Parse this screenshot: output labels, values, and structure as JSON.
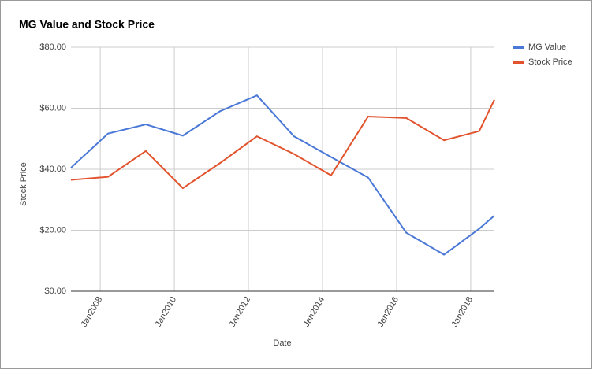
{
  "chart_data": {
    "type": "line",
    "title": "MG Value and Stock Price",
    "x_label": "Date",
    "y_label": "Stock Price",
    "x": [
      2007.21,
      2008.21,
      2009.23,
      2010.23,
      2011.23,
      2012.23,
      2013.23,
      2014.23,
      2015.23,
      2016.26,
      2017.28,
      2018.23,
      2018.64
    ],
    "series": [
      {
        "name": "MG Value",
        "color": "#4a78d6",
        "values": [
          40.5,
          51.7,
          54.7,
          51,
          59,
          64.2,
          50.8,
          44,
          37.3,
          19.2,
          12,
          20.5,
          24.8
        ]
      },
      {
        "name": "Stock Price",
        "color": "#e2532d",
        "values": [
          36.5,
          37.5,
          46,
          33.8,
          42,
          50.8,
          45,
          38,
          57.3,
          56.8,
          49.5,
          52.5,
          62.8
        ]
      }
    ],
    "xlim": [
      2007.21,
      2018.64
    ],
    "xticks": [
      {
        "value": 2008,
        "label": "Jan2008"
      },
      {
        "value": 2010,
        "label": "Jan2010"
      },
      {
        "value": 2012,
        "label": "Jan2012"
      },
      {
        "value": 2014,
        "label": "Jan2014"
      },
      {
        "value": 2016,
        "label": "Jan2016"
      },
      {
        "value": 2018,
        "label": "Jan2018"
      }
    ],
    "ylim": [
      0,
      80
    ],
    "yticks": [
      {
        "value": 0,
        "label": "$0.00"
      },
      {
        "value": 20,
        "label": "$20.00"
      },
      {
        "value": 40,
        "label": "$40.00"
      },
      {
        "value": 60,
        "label": "$60.00"
      },
      {
        "value": 80,
        "label": "$80.00"
      }
    ],
    "grid": true,
    "legend": "right"
  }
}
